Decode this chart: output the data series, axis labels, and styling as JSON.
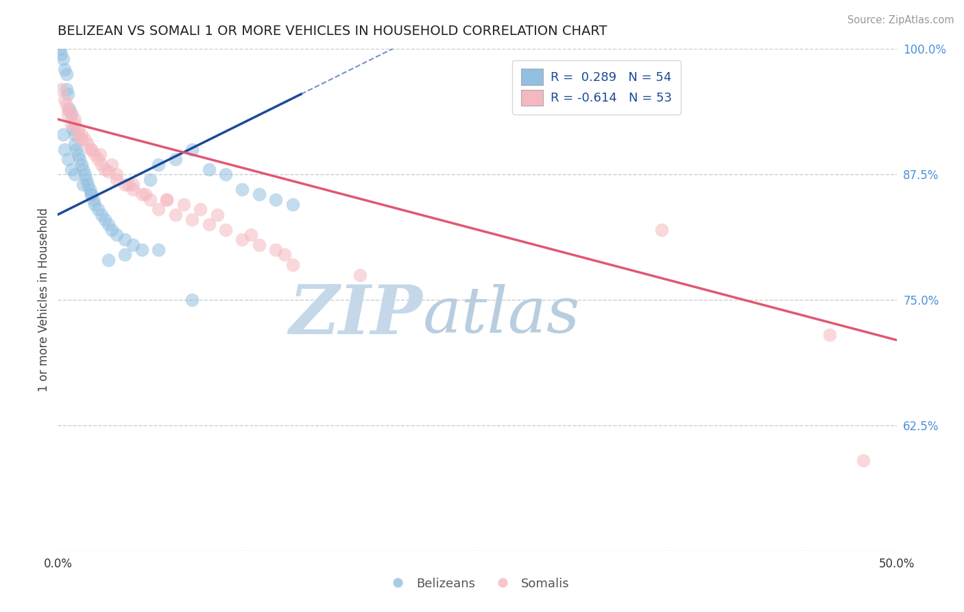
{
  "title": "BELIZEAN VS SOMALI 1 OR MORE VEHICLES IN HOUSEHOLD CORRELATION CHART",
  "source": "Source: ZipAtlas.com",
  "ylabel": "1 or more Vehicles in Household",
  "xlim": [
    0.0,
    50.0
  ],
  "ylim": [
    50.0,
    100.0
  ],
  "legend_R_blue": "R =  0.289",
  "legend_N_blue": "N = 54",
  "legend_R_pink": "R = -0.614",
  "legend_N_pink": "N = 53",
  "blue_color": "#92c0e0",
  "pink_color": "#f5b8c0",
  "blue_line_color": "#1a4a9a",
  "pink_line_color": "#e05870",
  "watermark_zip_color": "#c8d8ea",
  "watermark_atlas_color": "#c8d8ea",
  "blue_x": [
    0.15,
    0.2,
    0.3,
    0.4,
    0.5,
    0.5,
    0.6,
    0.7,
    0.8,
    0.9,
    1.0,
    1.0,
    1.1,
    1.2,
    1.3,
    1.4,
    1.5,
    1.6,
    1.7,
    1.8,
    1.9,
    2.0,
    2.1,
    2.2,
    2.4,
    2.6,
    2.8,
    3.0,
    3.2,
    3.5,
    4.0,
    4.5,
    5.0,
    5.5,
    6.0,
    7.0,
    8.0,
    9.0,
    10.0,
    11.0,
    12.0,
    13.0,
    14.0,
    0.3,
    0.4,
    0.6,
    0.8,
    1.0,
    1.5,
    2.0,
    3.0,
    4.0,
    6.0,
    8.0
  ],
  "blue_y": [
    100.0,
    99.5,
    99.0,
    98.0,
    97.5,
    96.0,
    95.5,
    94.0,
    93.5,
    92.0,
    91.5,
    90.5,
    90.0,
    89.5,
    89.0,
    88.5,
    88.0,
    87.5,
    87.0,
    86.5,
    86.0,
    85.5,
    85.0,
    84.5,
    84.0,
    83.5,
    83.0,
    82.5,
    82.0,
    81.5,
    81.0,
    80.5,
    80.0,
    87.0,
    88.5,
    89.0,
    90.0,
    88.0,
    87.5,
    86.0,
    85.5,
    85.0,
    84.5,
    91.5,
    90.0,
    89.0,
    88.0,
    87.5,
    86.5,
    85.5,
    79.0,
    79.5,
    80.0,
    75.0
  ],
  "pink_x": [
    0.2,
    0.4,
    0.5,
    0.6,
    0.8,
    1.0,
    1.0,
    1.2,
    1.4,
    1.6,
    1.8,
    2.0,
    2.2,
    2.4,
    2.6,
    2.8,
    3.0,
    3.5,
    4.0,
    4.5,
    5.0,
    5.5,
    6.0,
    7.0,
    8.0,
    9.0,
    10.0,
    11.0,
    12.0,
    13.0,
    3.5,
    4.5,
    6.5,
    8.5,
    14.0,
    18.0,
    0.6,
    0.8,
    1.2,
    1.4,
    2.0,
    2.5,
    3.2,
    4.2,
    5.2,
    6.5,
    7.5,
    9.5,
    11.5,
    13.5,
    36.0,
    46.0,
    48.0
  ],
  "pink_y": [
    96.0,
    95.0,
    94.5,
    94.0,
    93.5,
    93.0,
    92.5,
    92.0,
    91.5,
    91.0,
    90.5,
    90.0,
    89.5,
    89.0,
    88.5,
    88.0,
    87.8,
    87.0,
    86.5,
    86.0,
    85.5,
    85.0,
    84.0,
    83.5,
    83.0,
    82.5,
    82.0,
    81.0,
    80.5,
    80.0,
    87.5,
    86.5,
    85.0,
    84.0,
    78.5,
    77.5,
    93.5,
    92.5,
    91.5,
    91.0,
    90.0,
    89.5,
    88.5,
    86.5,
    85.5,
    85.0,
    84.5,
    83.5,
    81.5,
    79.5,
    82.0,
    71.5,
    59.0
  ],
  "blue_line_x0": 0.0,
  "blue_line_y0": 83.5,
  "blue_line_x1": 14.5,
  "blue_line_y1": 95.5,
  "pink_line_x0": 0.0,
  "pink_line_y0": 93.0,
  "pink_line_x1": 50.0,
  "pink_line_y1": 71.0
}
